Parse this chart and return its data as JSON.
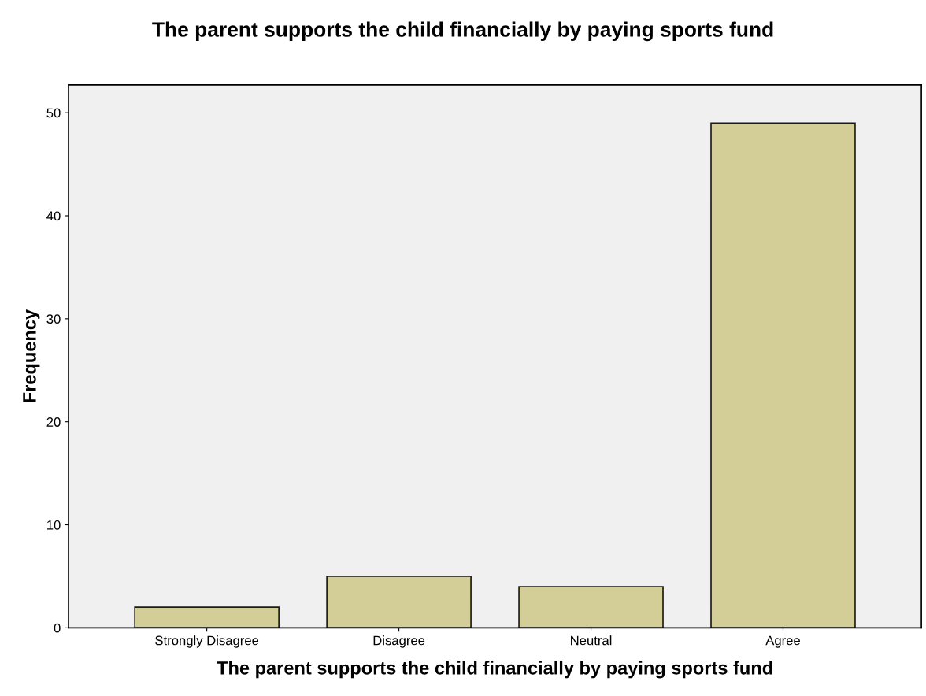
{
  "chart_data": {
    "type": "bar",
    "title": "The parent supports the child financially by paying sports fund",
    "xlabel": "The parent supports the child financially by paying sports fund",
    "ylabel": "Frequency",
    "categories": [
      "Strongly Disagree",
      "Disagree",
      "Neutral",
      "Agree"
    ],
    "values": [
      2,
      5,
      4,
      49
    ],
    "color": "#d3ce97",
    "ylim": [
      0,
      52.7
    ],
    "yticks": [
      0,
      10,
      20,
      30,
      40,
      50
    ],
    "grid": false,
    "legend": false
  }
}
